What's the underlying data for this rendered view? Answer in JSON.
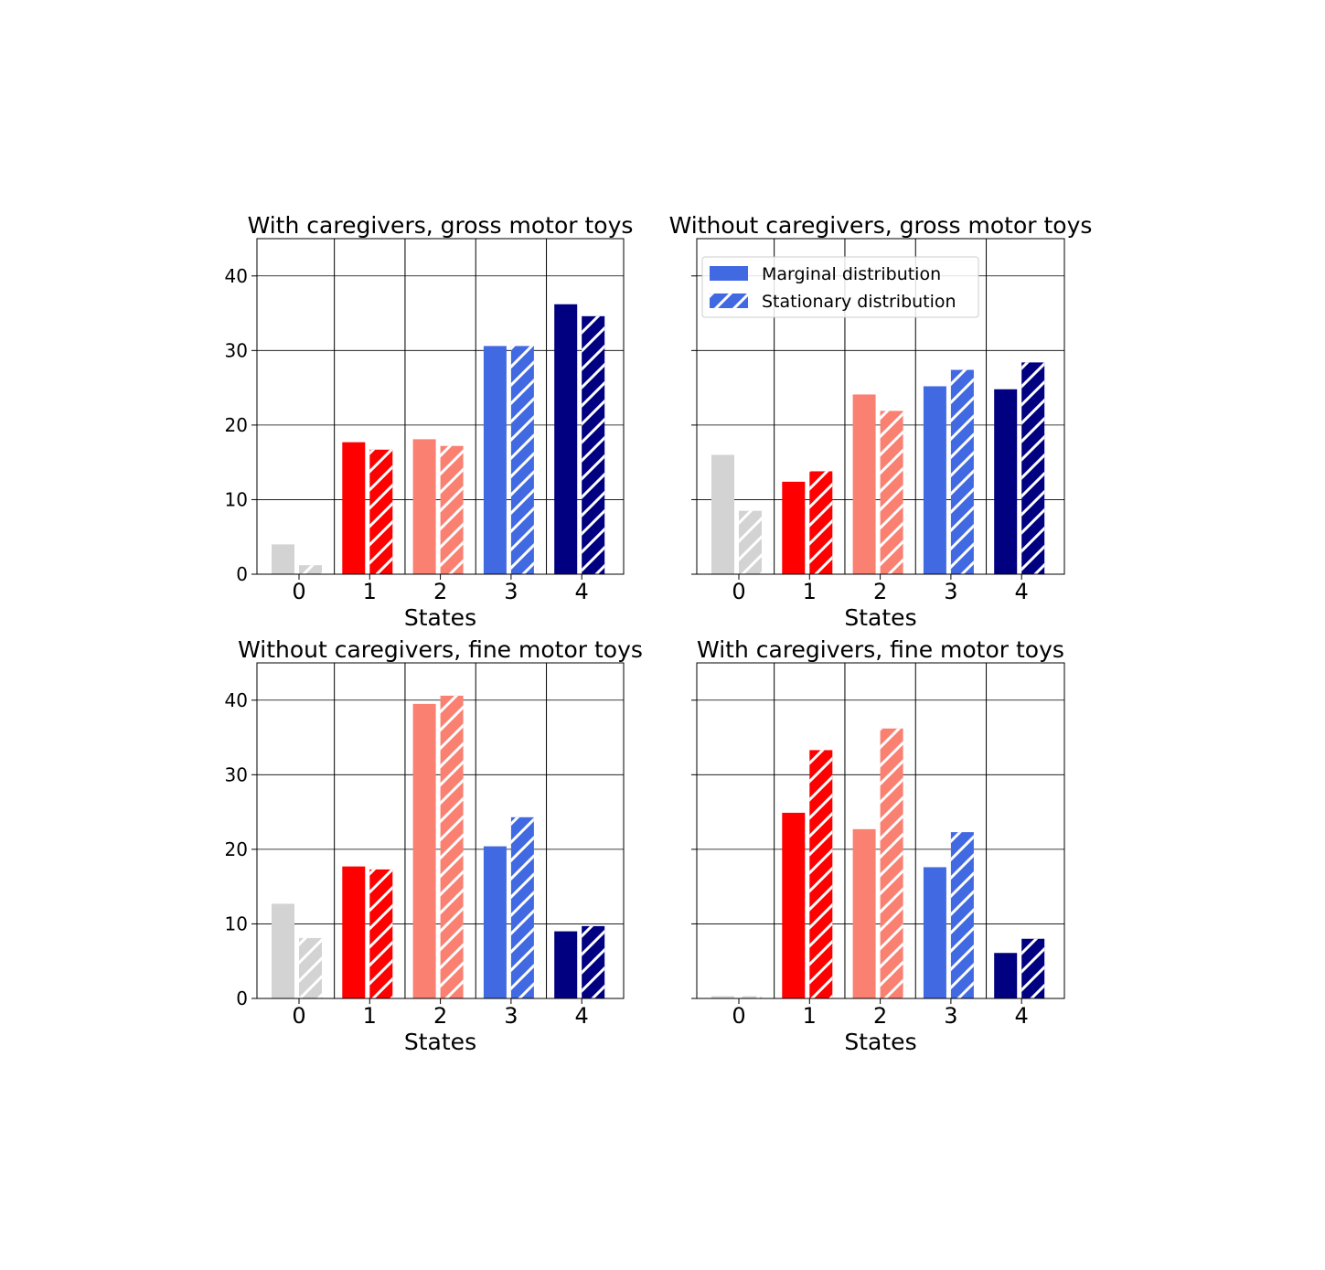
{
  "chart_data": [
    {
      "type": "bar",
      "title": "With caregivers, gross motor toys",
      "xlabel": "States",
      "ylabel": "",
      "categories": [
        "0",
        "1",
        "2",
        "3",
        "4"
      ],
      "ylim": [
        0,
        45
      ],
      "yticks": [
        "0",
        "10",
        "20",
        "30",
        "40"
      ],
      "show_yticklabels": true,
      "grid": true,
      "series": [
        {
          "name": "Marginal distribution",
          "values": [
            4.0,
            17.7,
            18.1,
            30.6,
            36.2
          ]
        },
        {
          "name": "Stationary distribution",
          "values": [
            1.2,
            16.7,
            17.2,
            30.6,
            34.6
          ]
        }
      ]
    },
    {
      "type": "bar",
      "title": "Without caregivers, gross motor toys",
      "xlabel": "States",
      "ylabel": "",
      "categories": [
        "0",
        "1",
        "2",
        "3",
        "4"
      ],
      "ylim": [
        0,
        45
      ],
      "yticks": [
        "0",
        "10",
        "20",
        "30",
        "40"
      ],
      "show_yticklabels": false,
      "grid": true,
      "legend": "top-left",
      "series": [
        {
          "name": "Marginal distribution",
          "values": [
            16.0,
            12.4,
            24.1,
            25.2,
            24.8
          ]
        },
        {
          "name": "Stationary distribution",
          "values": [
            8.5,
            13.8,
            21.9,
            27.4,
            28.4
          ]
        }
      ]
    },
    {
      "type": "bar",
      "title": "Without caregivers, fine motor toys",
      "xlabel": "States",
      "ylabel": "",
      "categories": [
        "0",
        "1",
        "2",
        "3",
        "4"
      ],
      "ylim": [
        0,
        45
      ],
      "yticks": [
        "0",
        "10",
        "20",
        "30",
        "40"
      ],
      "show_yticklabels": true,
      "grid": true,
      "series": [
        {
          "name": "Marginal distribution",
          "values": [
            12.7,
            17.7,
            39.5,
            20.4,
            9.0
          ]
        },
        {
          "name": "Stationary distribution",
          "values": [
            8.1,
            17.3,
            40.6,
            24.3,
            9.7
          ]
        }
      ]
    },
    {
      "type": "bar",
      "title": "With caregivers, fine motor toys",
      "xlabel": "States",
      "ylabel": "",
      "categories": [
        "0",
        "1",
        "2",
        "3",
        "4"
      ],
      "ylim": [
        0,
        45
      ],
      "yticks": [
        "0",
        "10",
        "20",
        "30",
        "40"
      ],
      "show_yticklabels": false,
      "grid": true,
      "series": [
        {
          "name": "Marginal distribution",
          "values": [
            0.3,
            24.9,
            22.7,
            17.6,
            6.1
          ]
        },
        {
          "name": "Stationary distribution",
          "values": [
            0.3,
            33.3,
            36.2,
            22.3,
            8.0
          ]
        }
      ]
    }
  ],
  "state_colors": [
    "#d3d3d3",
    "#ff0000",
    "#fa8072",
    "#4169e1",
    "#000080"
  ],
  "legend_color": "#4169e1"
}
